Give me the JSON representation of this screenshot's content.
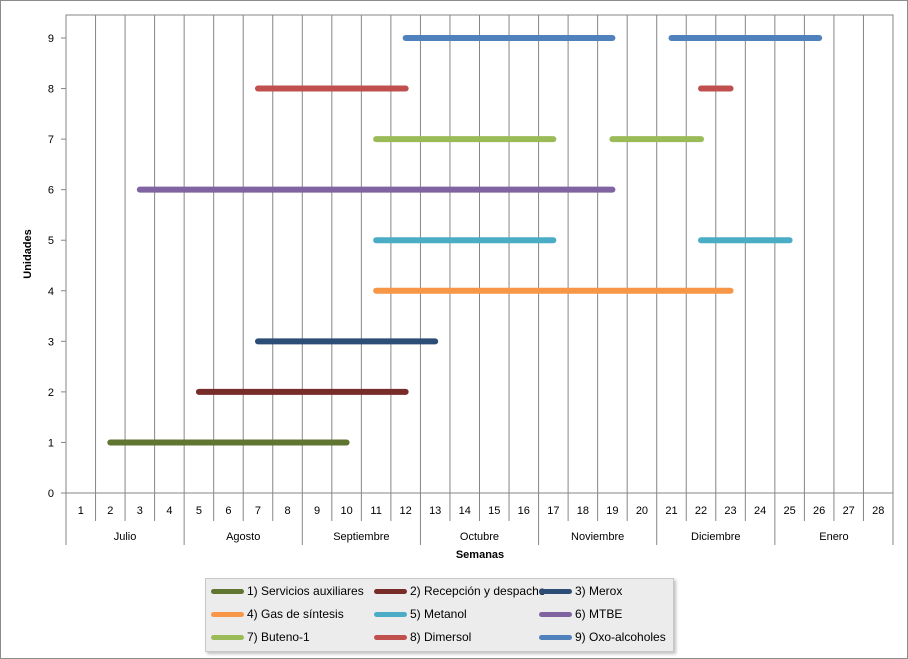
{
  "chart_data": {
    "type": "gantt",
    "xlabel": "Semanas",
    "ylabel": "Unidades",
    "x_ticks": [
      "1",
      "2",
      "3",
      "4",
      "5",
      "6",
      "7",
      "8",
      "9",
      "10",
      "11",
      "12",
      "13",
      "14",
      "15",
      "16",
      "17",
      "18",
      "19",
      "20",
      "21",
      "22",
      "23",
      "24",
      "25",
      "26",
      "27",
      "28"
    ],
    "x_range": [
      1,
      28
    ],
    "y_ticks": [
      "0",
      "1",
      "2",
      "3",
      "4",
      "5",
      "6",
      "7",
      "8",
      "9"
    ],
    "ylim": [
      0,
      9
    ],
    "months": [
      {
        "label": "Julio",
        "first_week": 1,
        "last_week": 4
      },
      {
        "label": "Agosto",
        "first_week": 5,
        "last_week": 8
      },
      {
        "label": "Septiembre",
        "first_week": 9,
        "last_week": 12
      },
      {
        "label": "Octubre",
        "first_week": 13,
        "last_week": 16
      },
      {
        "label": "Noviembre",
        "first_week": 17,
        "last_week": 20
      },
      {
        "label": "Diciembre",
        "first_week": 21,
        "last_week": 24
      },
      {
        "label": "Enero",
        "first_week": 25,
        "last_week": 28
      }
    ],
    "grid": "vertical",
    "legend_position": "bottom",
    "series": [
      {
        "name": "1) Servicios auxiliares",
        "color": "#5f7530",
        "y": 1,
        "segments": [
          [
            2,
            10
          ]
        ]
      },
      {
        "name": "2) Recepción y despacho",
        "color": "#772c2a",
        "y": 2,
        "segments": [
          [
            5,
            12
          ]
        ]
      },
      {
        "name": "3) Merox",
        "color": "#2c4d75",
        "y": 3,
        "segments": [
          [
            7,
            13
          ]
        ]
      },
      {
        "name": "4) Gas de síntesis",
        "color": "#f79646",
        "y": 4,
        "segments": [
          [
            11,
            23
          ]
        ]
      },
      {
        "name": "5) Metanol",
        "color": "#4bacc6",
        "y": 5,
        "segments": [
          [
            11,
            17
          ],
          [
            22,
            25
          ]
        ]
      },
      {
        "name": "6) MTBE",
        "color": "#8064a2",
        "y": 6,
        "segments": [
          [
            3,
            19
          ]
        ]
      },
      {
        "name": "7) Buteno-1",
        "color": "#9bbb59",
        "y": 7,
        "segments": [
          [
            11,
            17
          ],
          [
            19,
            22
          ]
        ]
      },
      {
        "name": "8) Dimersol",
        "color": "#c0504d",
        "y": 8,
        "segments": [
          [
            7,
            12
          ],
          [
            22,
            23
          ]
        ]
      },
      {
        "name": "9) Oxo-alcoholes",
        "color": "#4f81bd",
        "y": 9,
        "segments": [
          [
            12,
            19
          ],
          [
            21,
            26
          ]
        ]
      }
    ]
  }
}
